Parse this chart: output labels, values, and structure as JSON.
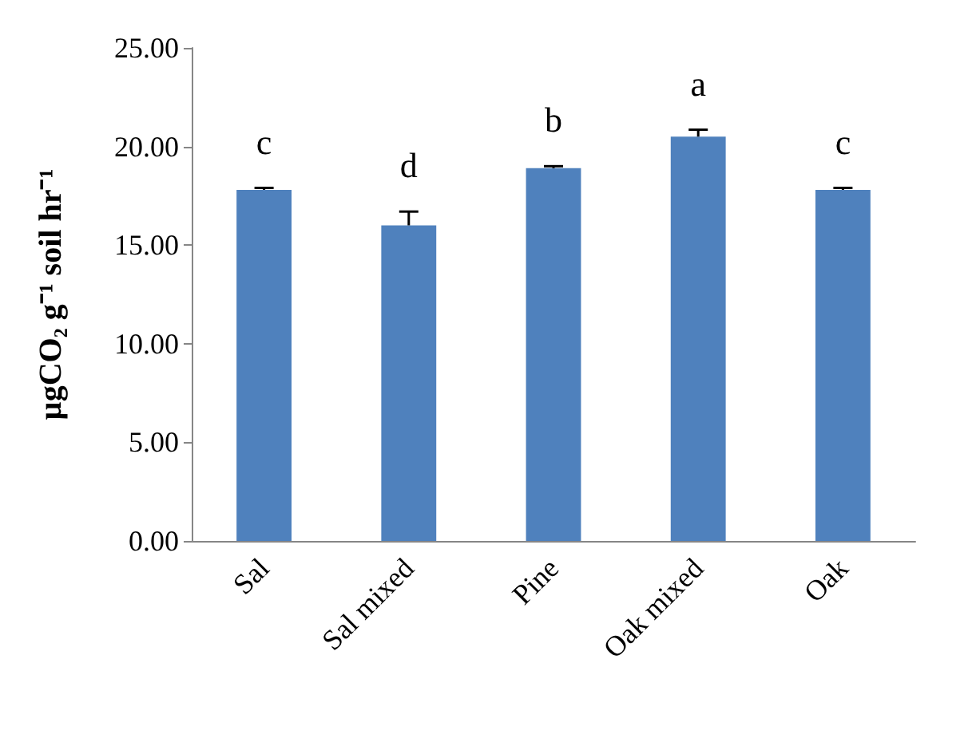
{
  "chart_data": {
    "type": "bar",
    "ylabel": "µgCO₂ g⁻¹ soil hr⁻¹",
    "categories": [
      "Sal",
      "Sal mixed",
      "Pine",
      "Oak mixed",
      "Oak"
    ],
    "values": [
      17.8,
      16.0,
      18.9,
      20.5,
      17.8
    ],
    "errors": [
      0.1,
      0.7,
      0.1,
      0.35,
      0.1
    ],
    "color": "#4f81bd",
    "ylim": [
      0,
      25
    ],
    "yticks": [
      {
        "value": 0,
        "label": "0.00"
      },
      {
        "value": 5,
        "label": "5.00"
      },
      {
        "value": 10,
        "label": "10.00"
      },
      {
        "value": 15,
        "label": "15.00"
      },
      {
        "value": 20,
        "label": "20.00"
      },
      {
        "value": 25,
        "label": "25.00"
      }
    ],
    "grid": false,
    "annotations": [
      "c",
      "d",
      "b",
      "a",
      "c"
    ]
  }
}
